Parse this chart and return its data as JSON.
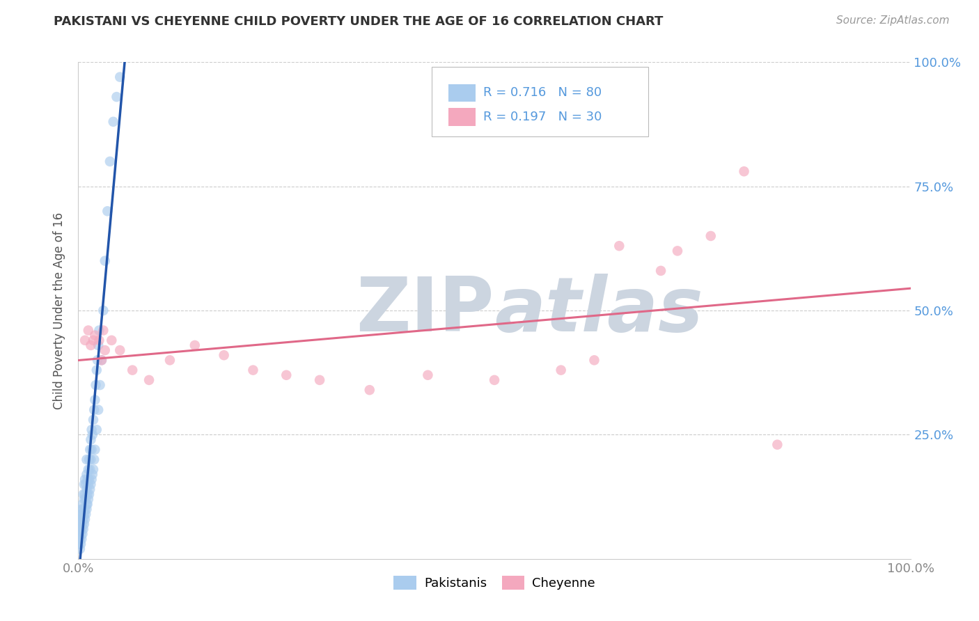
{
  "title": "PAKISTANI VS CHEYENNE CHILD POVERTY UNDER THE AGE OF 16 CORRELATION CHART",
  "source": "Source: ZipAtlas.com",
  "ylabel": "Child Poverty Under the Age of 16",
  "xlim": [
    0.0,
    1.0
  ],
  "ylim": [
    0.0,
    1.0
  ],
  "R_pakistani": 0.716,
  "N_pakistani": 80,
  "R_cheyenne": 0.197,
  "N_cheyenne": 30,
  "color_pakistani": "#aaccee",
  "color_cheyenne": "#f4a8be",
  "line_color_pakistani": "#2255aa",
  "line_color_cheyenne": "#e06888",
  "background_color": "#ffffff",
  "watermark": "ZIPatlas",
  "watermark_color": "#ccd5e0",
  "grid_color": "#cccccc",
  "right_tick_color": "#5599dd",
  "title_color": "#333333",
  "source_color": "#999999",
  "axis_label_color": "#555555",
  "tick_color": "#888888",
  "pakistani_x": [
    0.001,
    0.001,
    0.002,
    0.002,
    0.002,
    0.003,
    0.003,
    0.003,
    0.004,
    0.004,
    0.004,
    0.005,
    0.005,
    0.005,
    0.006,
    0.006,
    0.006,
    0.007,
    0.007,
    0.007,
    0.008,
    0.008,
    0.008,
    0.009,
    0.009,
    0.01,
    0.01,
    0.01,
    0.01,
    0.011,
    0.011,
    0.012,
    0.012,
    0.013,
    0.013,
    0.014,
    0.014,
    0.015,
    0.015,
    0.016,
    0.016,
    0.017,
    0.018,
    0.019,
    0.02,
    0.021,
    0.022,
    0.023,
    0.024,
    0.025,
    0.002,
    0.003,
    0.004,
    0.005,
    0.006,
    0.007,
    0.008,
    0.009,
    0.01,
    0.011,
    0.012,
    0.013,
    0.014,
    0.015,
    0.016,
    0.017,
    0.018,
    0.019,
    0.02,
    0.022,
    0.024,
    0.026,
    0.028,
    0.03,
    0.032,
    0.035,
    0.038,
    0.042,
    0.046,
    0.05
  ],
  "pakistani_y": [
    0.03,
    0.05,
    0.04,
    0.06,
    0.08,
    0.05,
    0.07,
    0.09,
    0.06,
    0.08,
    0.1,
    0.07,
    0.09,
    0.11,
    0.08,
    0.1,
    0.13,
    0.09,
    0.12,
    0.15,
    0.1,
    0.13,
    0.16,
    0.12,
    0.15,
    0.11,
    0.14,
    0.17,
    0.2,
    0.13,
    0.16,
    0.15,
    0.18,
    0.16,
    0.2,
    0.18,
    0.22,
    0.2,
    0.24,
    0.22,
    0.26,
    0.25,
    0.28,
    0.3,
    0.32,
    0.35,
    0.38,
    0.4,
    0.43,
    0.46,
    0.02,
    0.03,
    0.04,
    0.05,
    0.06,
    0.07,
    0.08,
    0.09,
    0.1,
    0.11,
    0.12,
    0.13,
    0.14,
    0.15,
    0.16,
    0.17,
    0.18,
    0.2,
    0.22,
    0.26,
    0.3,
    0.35,
    0.4,
    0.5,
    0.6,
    0.7,
    0.8,
    0.88,
    0.93,
    0.97
  ],
  "cheyenne_x": [
    0.008,
    0.012,
    0.018,
    0.025,
    0.032,
    0.04,
    0.05,
    0.065,
    0.085,
    0.11,
    0.14,
    0.175,
    0.21,
    0.25,
    0.29,
    0.35,
    0.42,
    0.5,
    0.58,
    0.62,
    0.65,
    0.7,
    0.72,
    0.76,
    0.8,
    0.84,
    0.03,
    0.02,
    0.015,
    0.028
  ],
  "cheyenne_y": [
    0.44,
    0.46,
    0.44,
    0.44,
    0.42,
    0.44,
    0.42,
    0.38,
    0.36,
    0.4,
    0.43,
    0.41,
    0.38,
    0.37,
    0.36,
    0.34,
    0.37,
    0.36,
    0.38,
    0.4,
    0.63,
    0.58,
    0.62,
    0.65,
    0.78,
    0.23,
    0.46,
    0.45,
    0.43,
    0.4
  ]
}
